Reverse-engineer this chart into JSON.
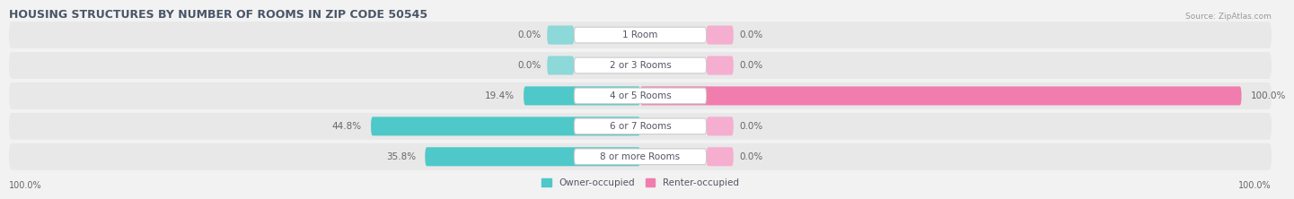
{
  "title": "HOUSING STRUCTURES BY NUMBER OF ROOMS IN ZIP CODE 50545",
  "source": "Source: ZipAtlas.com",
  "categories": [
    "1 Room",
    "2 or 3 Rooms",
    "4 or 5 Rooms",
    "6 or 7 Rooms",
    "8 or more Rooms"
  ],
  "owner_pct": [
    0.0,
    0.0,
    19.4,
    44.8,
    35.8
  ],
  "renter_pct": [
    0.0,
    0.0,
    100.0,
    0.0,
    0.0
  ],
  "owner_color": "#4EC8C8",
  "renter_color": "#F07DAE",
  "owner_color_light": "#8DD8D8",
  "renter_color_light": "#F5AECF",
  "bg_color": "#f2f2f2",
  "row_bg_even": "#ebebeb",
  "row_bg_odd": "#e2e2e2",
  "axis_label_left": "100.0%",
  "axis_label_right": "100.0%",
  "owner_label": "Owner-occupied",
  "renter_label": "Renter-occupied",
  "title_color": "#4a5568",
  "source_color": "#999999",
  "label_color": "#555566",
  "pct_color": "#666666"
}
